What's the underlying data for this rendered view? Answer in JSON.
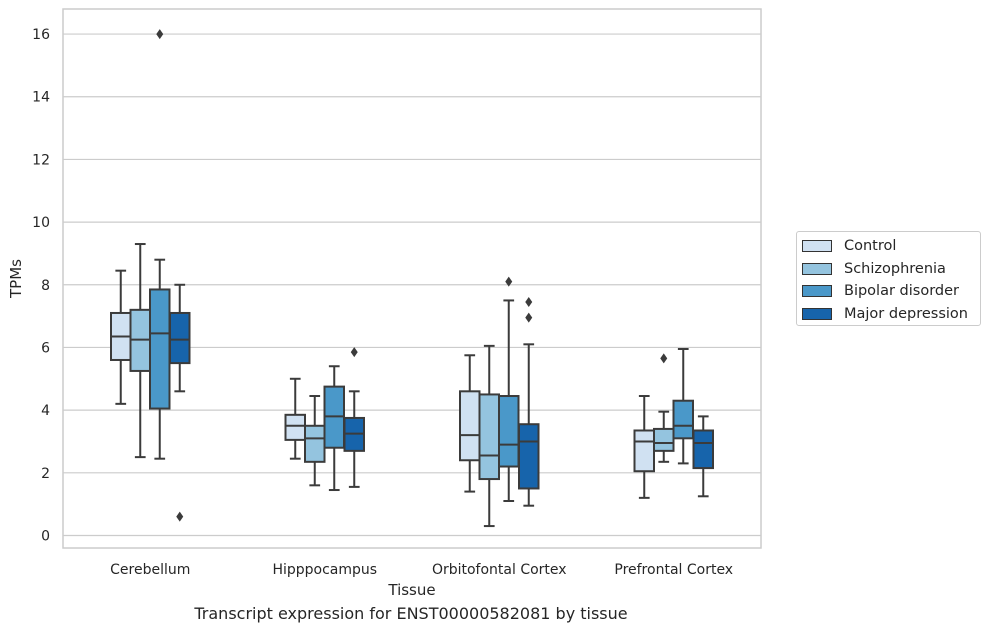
{
  "chart_data": {
    "type": "box",
    "title": "",
    "caption": "Transcript expression for ENST00000582081 by tissue",
    "xlabel": "Tissue",
    "ylabel": "TPMs",
    "ylim": [
      -0.4,
      16.8
    ],
    "yticks": [
      0,
      2,
      4,
      6,
      8,
      10,
      12,
      14,
      16
    ],
    "grid": "horizontal",
    "legend_position": "right",
    "categories": [
      "Cerebellum",
      "Hipppocampus",
      "Orbitofontal Cortex",
      "Prefrontal Cortex"
    ],
    "series": [
      {
        "name": "Control",
        "color": "#d0e1f2",
        "boxes": [
          {
            "whislo": 4.2,
            "q1": 5.6,
            "med": 6.35,
            "q3": 7.1,
            "whishi": 8.45,
            "fliers": []
          },
          {
            "whislo": 2.45,
            "q1": 3.05,
            "med": 3.5,
            "q3": 3.85,
            "whishi": 5.0,
            "fliers": []
          },
          {
            "whislo": 1.4,
            "q1": 2.4,
            "med": 3.2,
            "q3": 4.6,
            "whishi": 5.75,
            "fliers": []
          },
          {
            "whislo": 1.2,
            "q1": 2.05,
            "med": 3.0,
            "q3": 3.35,
            "whishi": 4.45,
            "fliers": []
          }
        ]
      },
      {
        "name": "Schizophrenia",
        "color": "#94c4df",
        "boxes": [
          {
            "whislo": 2.5,
            "q1": 5.25,
            "med": 6.25,
            "q3": 7.2,
            "whishi": 9.3,
            "fliers": []
          },
          {
            "whislo": 1.6,
            "q1": 2.35,
            "med": 3.1,
            "q3": 3.5,
            "whishi": 4.45,
            "fliers": []
          },
          {
            "whislo": 0.3,
            "q1": 1.8,
            "med": 2.55,
            "q3": 4.5,
            "whishi": 6.05,
            "fliers": []
          },
          {
            "whislo": 2.35,
            "q1": 2.7,
            "med": 2.95,
            "q3": 3.4,
            "whishi": 3.95,
            "fliers": [
              5.65
            ]
          }
        ]
      },
      {
        "name": "Bipolar disorder",
        "color": "#4a98c9",
        "boxes": [
          {
            "whislo": 2.45,
            "q1": 4.05,
            "med": 6.45,
            "q3": 7.85,
            "whishi": 8.8,
            "fliers": [
              16.0
            ]
          },
          {
            "whislo": 1.45,
            "q1": 2.8,
            "med": 3.8,
            "q3": 4.75,
            "whishi": 5.4,
            "fliers": []
          },
          {
            "whislo": 1.1,
            "q1": 2.2,
            "med": 2.9,
            "q3": 4.45,
            "whishi": 7.5,
            "fliers": [
              8.1
            ]
          },
          {
            "whislo": 2.3,
            "q1": 3.1,
            "med": 3.5,
            "q3": 4.3,
            "whishi": 5.95,
            "fliers": []
          }
        ]
      },
      {
        "name": "Major depression",
        "color": "#1764ab",
        "boxes": [
          {
            "whislo": 4.6,
            "q1": 5.5,
            "med": 6.25,
            "q3": 7.1,
            "whishi": 8.0,
            "fliers": [
              0.6
            ]
          },
          {
            "whislo": 1.55,
            "q1": 2.7,
            "med": 3.25,
            "q3": 3.75,
            "whishi": 4.6,
            "fliers": [
              5.85
            ]
          },
          {
            "whislo": 0.95,
            "q1": 1.5,
            "med": 3.0,
            "q3": 3.55,
            "whishi": 6.1,
            "fliers": [
              7.45,
              6.95
            ]
          },
          {
            "whislo": 1.25,
            "q1": 2.15,
            "med": 2.95,
            "q3": 3.35,
            "whishi": 3.8,
            "fliers": []
          }
        ]
      }
    ]
  }
}
